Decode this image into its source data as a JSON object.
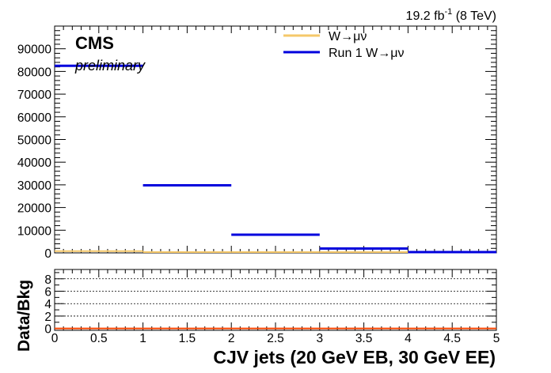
{
  "chart_data": [
    {
      "type": "step",
      "lumi_label": {
        "value": "19.2 fb",
        "superscript": "-1",
        "suffix": "(8 TeV)"
      },
      "cms_label": "CMS",
      "cms_sublabel": "preliminary",
      "xlim": [
        0,
        5
      ],
      "ylim": [
        0,
        100000
      ],
      "x_ticks": [
        "0",
        "0.5",
        "1",
        "1.5",
        "2",
        "2.5",
        "3",
        "3.5",
        "4",
        "4.5",
        "5"
      ],
      "y_ticks": [
        {
          "value": 0,
          "label": "0"
        },
        {
          "value": 10000,
          "label": "10000"
        },
        {
          "value": 20000,
          "label": "20000"
        },
        {
          "value": 30000,
          "label": "30000"
        },
        {
          "value": 40000,
          "label": "40000"
        },
        {
          "value": 50000,
          "label": "50000"
        },
        {
          "value": 60000,
          "label": "60000"
        },
        {
          "value": 70000,
          "label": "70000"
        },
        {
          "value": 80000,
          "label": "80000"
        },
        {
          "value": 90000,
          "label": "90000"
        }
      ],
      "bin_edges": [
        0,
        1,
        2,
        3,
        4,
        5
      ],
      "legend_position": "top-right",
      "series": [
        {
          "name": "W→μν",
          "color": "#f5c86a",
          "values": [
            800,
            250,
            80,
            20,
            5
          ]
        },
        {
          "name": "Run 1 W→μν",
          "color": "#0000dd",
          "values": [
            82500,
            29800,
            8000,
            1900,
            300
          ]
        }
      ]
    },
    {
      "type": "ratio",
      "ylabel": "Data/Bkg",
      "xlabel": "CJV jets (20 GeV EB, 30 GeV EE)",
      "xlim": [
        0,
        5
      ],
      "ylim": [
        -0.3,
        9.5
      ],
      "x_ticks": [
        "0",
        "0.5",
        "1",
        "1.5",
        "2",
        "2.5",
        "3",
        "3.5",
        "4",
        "4.5",
        "5"
      ],
      "y_ticks": [
        {
          "value": 0,
          "label": "0"
        },
        {
          "value": 2,
          "label": "2"
        },
        {
          "value": 4,
          "label": "4"
        },
        {
          "value": 6,
          "label": "6"
        },
        {
          "value": 8,
          "label": "8"
        }
      ],
      "y_ticks_minor": [
        1,
        3,
        5,
        7,
        9
      ],
      "reference_line": {
        "value": 0,
        "color": "#ff4400"
      },
      "grid": "dashed-horizontal"
    }
  ]
}
